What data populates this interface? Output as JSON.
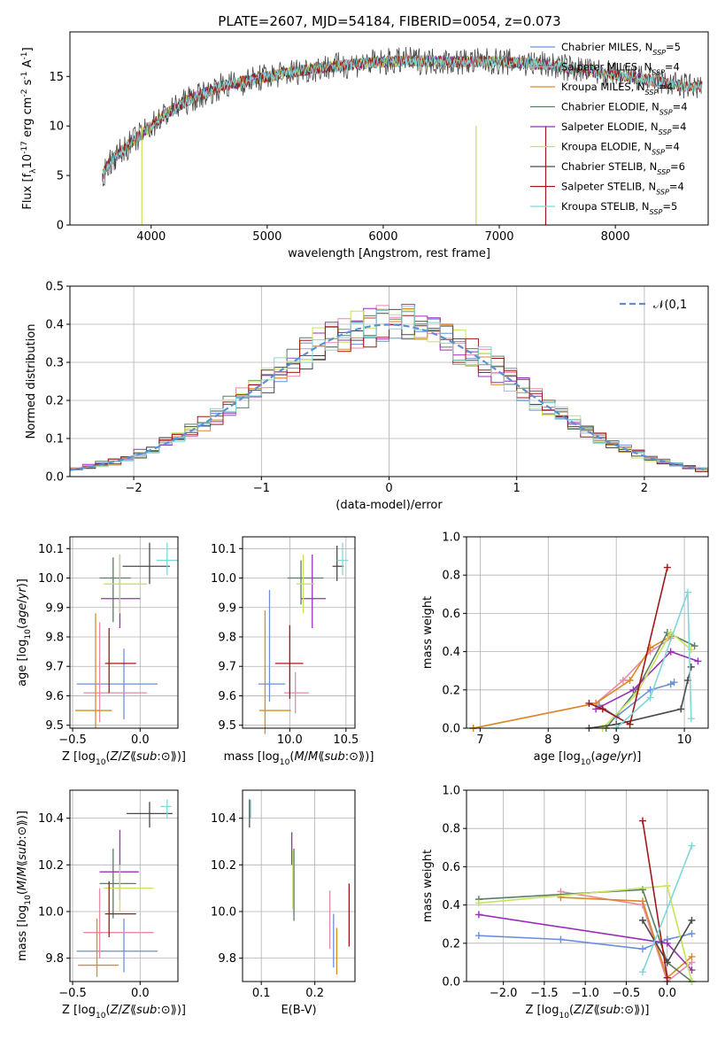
{
  "title": "PLATE=2607, MJD=54184, FIBERID=0054, z=0.073",
  "colors": {
    "Chabrier MILES": "#6a8fdc",
    "Salpeter MILES": "#e889a8",
    "Kroupa MILES": "#d98a24",
    "Chabrier ELODIE": "#5a7d6a",
    "Salpeter ELODIE": "#9a2fb8",
    "Kroupa ELODIE": "#c6e35a",
    "Chabrier STELIB": "#4a4a4a",
    "Salpeter STELIB": "#a01818",
    "Kroupa STELIB": "#7fd7d7"
  },
  "chart_data": [
    {
      "type": "line",
      "xlabel": "wavelength [Angstrom, rest frame]",
      "ylabel": "Flux [f$_\\lambda$10$^{-17}$ erg cm$^{-2}$ s$^{-1}$ A$^{-1}$]",
      "xlim": [
        3300,
        8800
      ],
      "ylim": [
        0,
        19.5
      ],
      "xticks": [
        4000,
        5000,
        6000,
        7000,
        8000
      ],
      "yticks": [
        0,
        5,
        10,
        15
      ],
      "legend_position": "right",
      "series": [
        {
          "name": "Chabrier MILES",
          "nssp": "5"
        },
        {
          "name": "Salpeter MILES",
          "nssp": "4"
        },
        {
          "name": "Kroupa MILES",
          "nssp": "4"
        },
        {
          "name": "Chabrier ELODIE",
          "nssp": "4"
        },
        {
          "name": "Salpeter ELODIE",
          "nssp": "4"
        },
        {
          "name": "Kroupa ELODIE",
          "nssp": "4"
        },
        {
          "name": "Chabrier STELIB",
          "nssp": "6"
        },
        {
          "name": "Salpeter STELIB",
          "nssp": "4"
        },
        {
          "name": "Kroupa STELIB",
          "nssp": "5"
        }
      ],
      "data_x": [
        3580,
        3650,
        3800,
        3950,
        4100,
        4300,
        4600,
        5000,
        5400,
        5800,
        6200,
        6600,
        7000,
        7400,
        7800,
        8200,
        8600
      ],
      "data_y": [
        5,
        6.5,
        8,
        9.5,
        11,
        12.5,
        14,
        15,
        15.8,
        16.3,
        16.6,
        16.5,
        16.5,
        16.2,
        15.5,
        14.8,
        14
      ]
    },
    {
      "type": "histogram",
      "xlabel": "(data-model)/error",
      "ylabel": "Normed distribution",
      "xlim": [
        -2.5,
        2.5
      ],
      "ylim": [
        0,
        0.5
      ],
      "xticks": [
        -2,
        -1,
        0,
        1,
        2
      ],
      "yticks": [
        0.0,
        0.1,
        0.2,
        0.3,
        0.4,
        0.5
      ],
      "legend": "$\\mathcal{N}(0,1)$",
      "bin_width": 0.1
    },
    {
      "type": "errorbar",
      "xlabel": "Z [log$_{10}$($Z/Z_\\odot$)]",
      "ylabel": "age  [log$_{10}$($age/yr$)]",
      "xlim": [
        -0.52,
        0.28
      ],
      "ylim": [
        9.49,
        10.14
      ],
      "xticks": [
        -0.5,
        0.0
      ],
      "yticks": [
        9.5,
        9.6,
        9.7,
        9.8,
        9.9,
        10.0,
        10.1
      ],
      "points": [
        {
          "s": "Chabrier MILES",
          "x": -0.12,
          "xe": [
            0.35,
            0.25
          ],
          "y": 9.64,
          "ye": [
            0.12,
            0.12
          ]
        },
        {
          "s": "Salpeter MILES",
          "x": -0.3,
          "xe": [
            0.12,
            0.35
          ],
          "y": 9.61,
          "ye": [
            0.1,
            0.24
          ]
        },
        {
          "s": "Kroupa MILES",
          "x": -0.33,
          "xe": [
            0.15,
            0.12
          ],
          "y": 9.55,
          "ye": [
            0.06,
            0.33
          ]
        },
        {
          "s": "Chabrier ELODIE",
          "x": -0.2,
          "xe": [
            0.1,
            0.13
          ],
          "y": 10.0,
          "ye": [
            0.15,
            0.07
          ]
        },
        {
          "s": "Salpeter ELODIE",
          "x": -0.15,
          "xe": [
            0.14,
            0.15
          ],
          "y": 9.93,
          "ye": [
            0.1,
            0.15
          ]
        },
        {
          "s": "Kroupa ELODIE",
          "x": -0.15,
          "xe": [
            0.12,
            0.2
          ],
          "y": 9.98,
          "ye": [
            0.1,
            0.1
          ]
        },
        {
          "s": "Chabrier STELIB",
          "x": 0.07,
          "xe": [
            0.2,
            0.15
          ],
          "y": 10.04,
          "ye": [
            0.06,
            0.08
          ]
        },
        {
          "s": "Salpeter STELIB",
          "x": -0.23,
          "xe": [
            0.03,
            0.2
          ],
          "y": 9.71,
          "ye": [
            0.1,
            0.12
          ]
        },
        {
          "s": "Kroupa STELIB",
          "x": 0.2,
          "xe": [
            0.08,
            0.08
          ],
          "y": 10.06,
          "ye": [
            0.05,
            0.06
          ]
        }
      ]
    },
    {
      "type": "errorbar",
      "xlabel": "mass [log$_{10}$($M/M_\\odot$)]",
      "ylabel": "",
      "xlim": [
        9.58,
        10.58
      ],
      "ylim": [
        9.49,
        10.14
      ],
      "xticks": [
        10.0,
        10.5
      ],
      "yticks": [
        9.5,
        9.6,
        9.7,
        9.8,
        9.9,
        10.0,
        10.1
      ],
      "points": [
        {
          "s": "Chabrier MILES",
          "x": 9.82,
          "xe": [
            0.1,
            0.14
          ],
          "y": 9.64,
          "ye": [
            0.06,
            0.32
          ]
        },
        {
          "s": "Salpeter MILES",
          "x": 10.05,
          "xe": [
            0.1,
            0.12
          ],
          "y": 9.61,
          "ye": [
            0.07,
            0.07
          ]
        },
        {
          "s": "Kroupa MILES",
          "x": 9.78,
          "xe": [
            0.05,
            0.23
          ],
          "y": 9.55,
          "ye": [
            0.08,
            0.34
          ]
        },
        {
          "s": "Chabrier ELODIE",
          "x": 10.1,
          "xe": [
            0.12,
            0.2
          ],
          "y": 10.0,
          "ye": [
            0.09,
            0.06
          ]
        },
        {
          "s": "Salpeter ELODIE",
          "x": 10.2,
          "xe": [
            0.1,
            0.12
          ],
          "y": 9.93,
          "ye": [
            0.1,
            0.15
          ]
        },
        {
          "s": "Kroupa ELODIE",
          "x": 10.12,
          "xe": [
            0.06,
            0.1
          ],
          "y": 9.98,
          "ye": [
            0.1,
            0.1
          ]
        },
        {
          "s": "Chabrier STELIB",
          "x": 10.42,
          "xe": [
            0.04,
            0.06
          ],
          "y": 10.04,
          "ye": [
            0.05,
            0.07
          ]
        },
        {
          "s": "Salpeter STELIB",
          "x": 10.0,
          "xe": [
            0.13,
            0.12
          ],
          "y": 9.71,
          "ye": [
            0.12,
            0.13
          ]
        },
        {
          "s": "Kroupa STELIB",
          "x": 10.47,
          "xe": [
            0.05,
            0.05
          ],
          "y": 10.06,
          "ye": [
            0.05,
            0.06
          ]
        }
      ]
    },
    {
      "type": "line",
      "xlabel": "age  [log$_{10}$($age/yr$)]",
      "ylabel": "mass weight",
      "xlim": [
        6.8,
        10.35
      ],
      "ylim": [
        0,
        1.0
      ],
      "xticks": [
        7,
        8,
        9,
        10
      ],
      "yticks": [
        0.0,
        0.2,
        0.4,
        0.6,
        0.8,
        1.0
      ],
      "series": [
        {
          "s": "Chabrier MILES",
          "x": [
            8.75,
            9.0,
            9.5,
            9.8,
            9.85
          ],
          "y": [
            0.12,
            0.06,
            0.2,
            0.23,
            0.24
          ]
        },
        {
          "s": "Salpeter MILES",
          "x": [
            6.9,
            8.7,
            9.1,
            9.5,
            9.8
          ],
          "y": [
            0.0,
            0.13,
            0.25,
            0.4,
            0.47
          ]
        },
        {
          "s": "Kroupa MILES",
          "x": [
            6.9,
            8.7,
            9.2,
            9.5,
            9.8
          ],
          "y": [
            0.0,
            0.13,
            0.25,
            0.42,
            0.48
          ]
        },
        {
          "s": "Chabrier ELODIE",
          "x": [
            8.85,
            9.3,
            9.75,
            10.15
          ],
          "y": [
            0.0,
            0.2,
            0.5,
            0.43
          ]
        },
        {
          "s": "Salpeter ELODIE",
          "x": [
            8.7,
            9.25,
            9.8,
            10.2
          ],
          "y": [
            0.1,
            0.2,
            0.4,
            0.35
          ]
        },
        {
          "s": "Kroupa ELODIE",
          "x": [
            8.8,
            9.3,
            9.8,
            10.1
          ],
          "y": [
            0.0,
            0.18,
            0.5,
            0.41
          ]
        },
        {
          "s": "Chabrier STELIB",
          "x": [
            8.6,
            9.0,
            9.95,
            10.05,
            10.1
          ],
          "y": [
            0.0,
            0.02,
            0.1,
            0.25,
            0.32
          ]
        },
        {
          "s": "Salpeter STELIB",
          "x": [
            8.6,
            8.8,
            9.2,
            9.75
          ],
          "y": [
            0.13,
            0.1,
            0.02,
            0.84
          ]
        },
        {
          "s": "Kroupa STELIB",
          "x": [
            9.0,
            9.5,
            10.05,
            10.1
          ],
          "y": [
            0.0,
            0.16,
            0.71,
            0.05
          ]
        }
      ]
    },
    {
      "type": "errorbar",
      "xlabel": "Z [log$_{10}$($Z/Z_\\odot$)]",
      "ylabel": "mass [log$_{10}$($M/M_\\odot$)]",
      "xlim": [
        -0.52,
        0.28
      ],
      "ylim": [
        9.7,
        10.52
      ],
      "xticks": [
        -0.5,
        0.0
      ],
      "yticks": [
        9.8,
        10.0,
        10.2,
        10.4
      ],
      "points": [
        {
          "s": "Chabrier MILES",
          "x": -0.12,
          "xe": [
            0.35,
            0.25
          ],
          "y": 9.83,
          "ye": [
            0.09,
            0.14
          ]
        },
        {
          "s": "Salpeter MILES",
          "x": -0.3,
          "xe": [
            0.12,
            0.4
          ],
          "y": 9.91,
          "ye": [
            0.11,
            0.19
          ]
        },
        {
          "s": "Kroupa MILES",
          "x": -0.32,
          "xe": [
            0.14,
            0.16
          ],
          "y": 9.77,
          "ye": [
            0.05,
            0.2
          ]
        },
        {
          "s": "Chabrier ELODIE",
          "x": -0.2,
          "xe": [
            0.1,
            0.17
          ],
          "y": 10.12,
          "ye": [
            0.15,
            0.15
          ]
        },
        {
          "s": "Salpeter ELODIE",
          "x": -0.15,
          "xe": [
            0.15,
            0.14
          ],
          "y": 10.17,
          "ye": [
            0.12,
            0.18
          ]
        },
        {
          "s": "Kroupa ELODIE",
          "x": -0.15,
          "xe": [
            0.12,
            0.25
          ],
          "y": 10.1,
          "ye": [
            0.1,
            0.1
          ]
        },
        {
          "s": "Chabrier STELIB",
          "x": 0.07,
          "xe": [
            0.17,
            0.17
          ],
          "y": 10.42,
          "ye": [
            0.06,
            0.05
          ]
        },
        {
          "s": "Salpeter STELIB",
          "x": -0.23,
          "xe": [
            0.03,
            0.2
          ],
          "y": 9.99,
          "ye": [
            0.1,
            0.14
          ]
        },
        {
          "s": "Kroupa STELIB",
          "x": 0.2,
          "xe": [
            0.05,
            0.03
          ],
          "y": 10.45,
          "ye": [
            0.05,
            0.03
          ]
        }
      ]
    },
    {
      "type": "errorbar",
      "xlabel": "E(B-V)",
      "ylabel": "",
      "xlim": [
        0.065,
        0.275
      ],
      "ylim": [
        9.7,
        10.52
      ],
      "xticks": [
        0.1,
        0.2
      ],
      "yticks": [
        9.8,
        10.0,
        10.2,
        10.4
      ],
      "points": [
        {
          "s": "Chabrier MILES",
          "x": 0.235,
          "xe": [
            0.0,
            0.0
          ],
          "y": 9.85,
          "ye": [
            0.09,
            0.14
          ]
        },
        {
          "s": "Salpeter MILES",
          "x": 0.228,
          "xe": [
            0.0,
            0.0
          ],
          "y": 9.95,
          "ye": [
            0.11,
            0.14
          ]
        },
        {
          "s": "Kroupa MILES",
          "x": 0.241,
          "xe": [
            0.0,
            0.0
          ],
          "y": 9.83,
          "ye": [
            0.1,
            0.1
          ]
        },
        {
          "s": "Chabrier ELODIE",
          "x": 0.161,
          "xe": [
            0.0,
            0.0
          ],
          "y": 10.11,
          "ye": [
            0.15,
            0.16
          ]
        },
        {
          "s": "Salpeter ELODIE",
          "x": 0.157,
          "xe": [
            0.0,
            0.0
          ],
          "y": 10.25,
          "ye": [
            0.05,
            0.09
          ]
        },
        {
          "s": "Kroupa ELODIE",
          "x": 0.159,
          "xe": [
            0.0,
            0.0
          ],
          "y": 10.11,
          "ye": [
            0.1,
            0.15
          ]
        },
        {
          "s": "Chabrier STELIB",
          "x": 0.078,
          "xe": [
            0.0,
            0.0
          ],
          "y": 10.42,
          "ye": [
            0.06,
            0.06
          ]
        },
        {
          "s": "Salpeter STELIB",
          "x": 0.264,
          "xe": [
            0.0,
            0.0
          ],
          "y": 9.99,
          "ye": [
            0.14,
            0.13
          ]
        },
        {
          "s": "Kroupa STELIB",
          "x": 0.08,
          "xe": [
            0.0,
            0.0
          ],
          "y": 10.44,
          "ye": [
            0.04,
            0.04
          ]
        }
      ]
    },
    {
      "type": "line",
      "xlabel": "Z [log$_{10}$($Z/Z_\\odot$)]",
      "ylabel": "mass weight",
      "xlim": [
        -2.45,
        0.5
      ],
      "ylim": [
        0,
        1.0
      ],
      "xticks": [
        -2.0,
        -1.5,
        -1.0,
        -0.5,
        0.0
      ],
      "yticks": [
        0.0,
        0.2,
        0.4,
        0.6,
        0.8,
        1.0
      ],
      "series": [
        {
          "s": "Chabrier MILES",
          "x": [
            -2.3,
            -1.3,
            -0.3,
            0.0,
            0.3
          ],
          "y": [
            0.24,
            0.22,
            0.17,
            0.22,
            0.25
          ]
        },
        {
          "s": "Salpeter MILES",
          "x": [
            -1.3,
            -0.3,
            0.0,
            0.3
          ],
          "y": [
            0.47,
            0.4,
            0.0,
            0.1
          ]
        },
        {
          "s": "Kroupa MILES",
          "x": [
            -1.3,
            -0.3,
            0.0,
            0.3
          ],
          "y": [
            0.44,
            0.42,
            0.02,
            0.13
          ]
        },
        {
          "s": "Chabrier ELODIE",
          "x": [
            -2.3,
            -0.3,
            0.0,
            0.3
          ],
          "y": [
            0.43,
            0.48,
            0.1,
            0.0
          ]
        },
        {
          "s": "Salpeter ELODIE",
          "x": [
            -2.3,
            0.0,
            0.3
          ],
          "y": [
            0.35,
            0.2,
            0.06
          ]
        },
        {
          "s": "Kroupa ELODIE",
          "x": [
            -2.3,
            0.0,
            0.3
          ],
          "y": [
            0.41,
            0.5,
            0.0
          ]
        },
        {
          "s": "Chabrier STELIB",
          "x": [
            -0.3,
            0.0,
            0.3
          ],
          "y": [
            0.32,
            0.1,
            0.32
          ]
        },
        {
          "s": "Salpeter STELIB",
          "x": [
            -0.3,
            0.0
          ],
          "y": [
            0.84,
            0.02
          ]
        },
        {
          "s": "Kroupa STELIB",
          "x": [
            -0.3,
            0.3
          ],
          "y": [
            0.05,
            0.71
          ]
        }
      ]
    }
  ]
}
